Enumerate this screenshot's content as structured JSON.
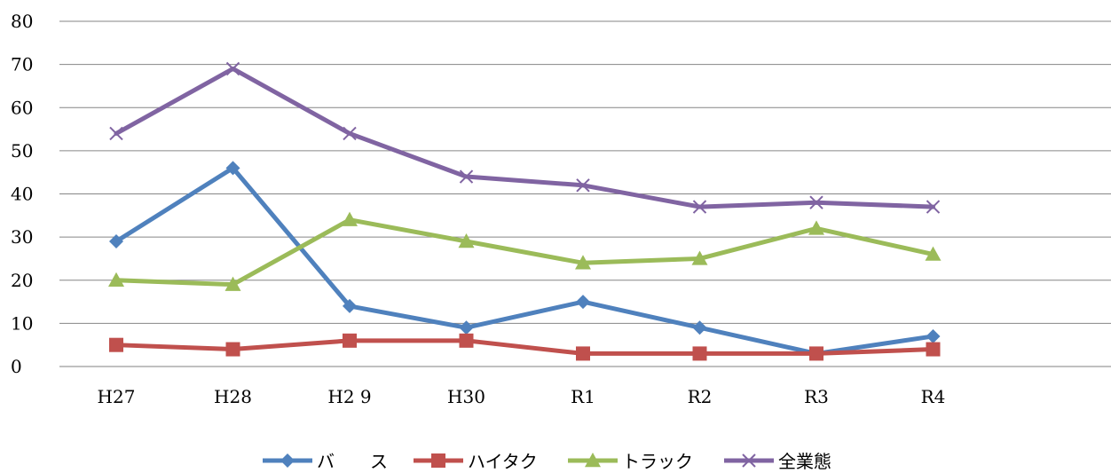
{
  "chart_data": {
    "type": "line",
    "title": "",
    "xlabel": "",
    "ylabel": "",
    "categories": [
      "H27",
      "H28",
      "H2 9",
      "H30",
      "R1",
      "R2",
      "R3",
      "R4"
    ],
    "ylim": [
      0,
      80
    ],
    "yticks": [
      0,
      10,
      20,
      30,
      40,
      50,
      60,
      70,
      80
    ],
    "grid": true,
    "legend_position": "bottom",
    "series": [
      {
        "name": "バ　　ス",
        "values": [
          29,
          46,
          14,
          9,
          15,
          9,
          3,
          7
        ],
        "color": "#4F81BD",
        "marker": "diamond"
      },
      {
        "name": "ハイタク",
        "values": [
          5,
          4,
          6,
          6,
          3,
          3,
          3,
          4
        ],
        "color": "#C0504D",
        "marker": "square"
      },
      {
        "name": "トラック",
        "values": [
          20,
          19,
          34,
          29,
          24,
          25,
          32,
          26
        ],
        "color": "#9BBB59",
        "marker": "triangle"
      },
      {
        "name": "全業態",
        "values": [
          54,
          69,
          54,
          44,
          42,
          37,
          38,
          37
        ],
        "color": "#8064A2",
        "marker": "x"
      }
    ]
  }
}
